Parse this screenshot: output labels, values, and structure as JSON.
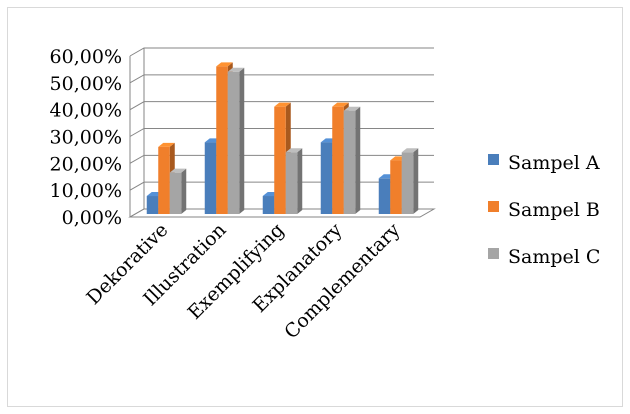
{
  "chart_data": {
    "type": "bar",
    "categories": [
      "Dekorative",
      "Illustration",
      "Exemplifying",
      "Explanatory",
      "Complementary"
    ],
    "series": [
      {
        "name": "Sampel A",
        "values": [
          6.7,
          26.7,
          6.7,
          26.7,
          13.3
        ],
        "color": "#4a7ebb"
      },
      {
        "name": "Sampel B",
        "values": [
          25.0,
          55.0,
          40.0,
          40.0,
          20.0
        ],
        "color": "#f07f2b"
      },
      {
        "name": "Sampel C",
        "values": [
          15.4,
          53.0,
          23.0,
          38.5,
          23.0
        ],
        "color": "#a5a5a5"
      }
    ],
    "ylim": [
      0,
      60
    ],
    "yticks": [
      "0,00%",
      "10,00%",
      "20,00%",
      "30,00%",
      "40,00%",
      "50,00%",
      "60,00%"
    ],
    "grid": true,
    "legend_position": "right",
    "xlabel": "",
    "ylabel": "",
    "title": ""
  }
}
